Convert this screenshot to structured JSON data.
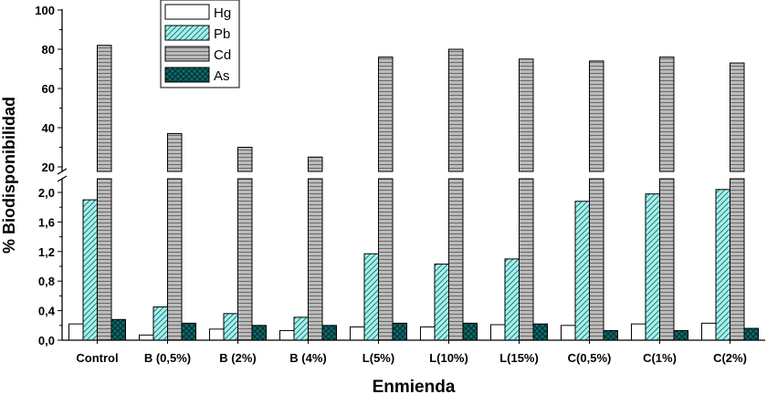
{
  "chart_data": {
    "type": "bar",
    "xlabel": "Enmienda",
    "ylabel": "% Biodisponibilidad",
    "categories": [
      "Control",
      "B (0,5%)",
      "B (2%)",
      "B (4%)",
      "L(5%)",
      "L(10%)",
      "L(15%)",
      "C(0,5%)",
      "C(1%)",
      "C(2%)"
    ],
    "y_axis_broken": true,
    "ylim_lower": [
      0,
      2.0
    ],
    "ylim_upper": [
      20,
      100
    ],
    "yticks_lower": [
      "0,0",
      "0,4",
      "0,8",
      "1,2",
      "1,6",
      "2,0"
    ],
    "yticks_upper": [
      "20",
      "40",
      "60",
      "80",
      "100"
    ],
    "legend_position": "top-left",
    "grid": false,
    "series": [
      {
        "name": "Hg",
        "pattern": "none",
        "color": "#ffffff",
        "values": [
          0.22,
          0.07,
          0.15,
          0.13,
          0.18,
          0.18,
          0.21,
          0.2,
          0.22,
          0.23
        ]
      },
      {
        "name": "Pb",
        "pattern": "diagonal-hatch",
        "color": "#a6f0ec",
        "values": [
          1.9,
          0.45,
          0.36,
          0.31,
          1.17,
          1.03,
          1.1,
          1.88,
          1.98,
          2.04
        ]
      },
      {
        "name": "Cd",
        "pattern": "horizontal-lines",
        "color": "#bbbbbb",
        "values": [
          82,
          37,
          30,
          25,
          76,
          80,
          75,
          74,
          76,
          73
        ]
      },
      {
        "name": "As",
        "pattern": "crosshatch",
        "color": "#0f6a6a",
        "values": [
          0.28,
          0.23,
          0.2,
          0.2,
          0.23,
          0.23,
          0.22,
          0.13,
          0.13,
          0.16
        ]
      }
    ]
  }
}
